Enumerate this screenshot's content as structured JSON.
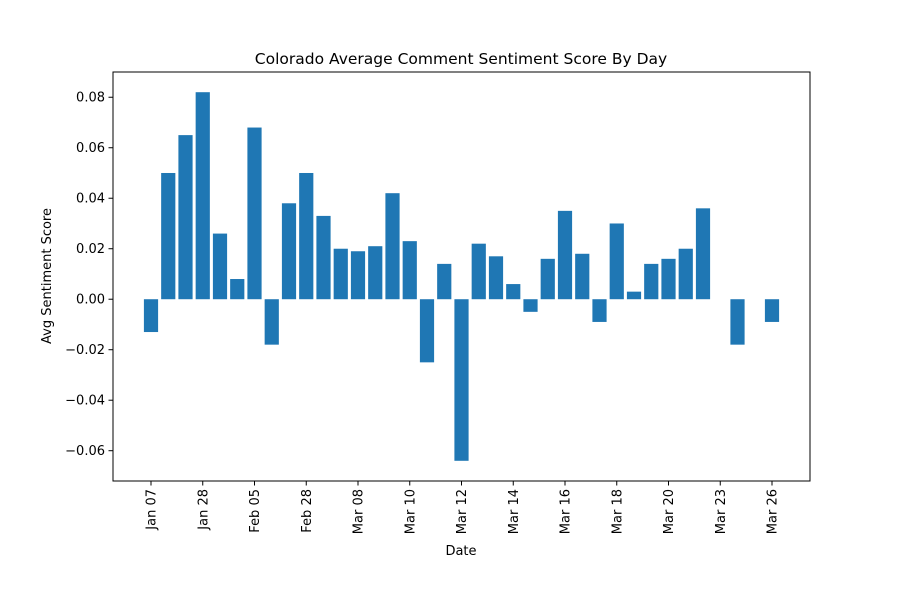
{
  "chart_data": {
    "type": "bar",
    "title": "Colorado Average Comment Sentiment Score By Day",
    "xlabel": "Date",
    "ylabel": "Avg Sentiment Score",
    "ylim": [
      -0.072,
      0.09
    ],
    "yticks": [
      -0.06,
      -0.04,
      -0.02,
      0.0,
      0.02,
      0.04,
      0.06,
      0.08
    ],
    "ytick_labels": [
      "−0.06",
      "−0.04",
      "−0.02",
      "0.00",
      "0.02",
      "0.04",
      "0.06",
      "0.08"
    ],
    "xtick_labels": [
      "Jan 07",
      "Jan 28",
      "Feb 05",
      "Feb 28",
      "Mar 08",
      "Mar 10",
      "Mar 12",
      "Mar 14",
      "Mar 16",
      "Mar 18",
      "Mar 20",
      "Mar 23",
      "Mar 26"
    ],
    "xtick_positions": [
      0,
      3,
      6,
      9,
      12,
      15,
      18,
      21,
      24,
      27,
      30,
      33,
      36
    ],
    "values": [
      -0.013,
      0.05,
      0.065,
      0.082,
      0.026,
      0.008,
      0.068,
      -0.018,
      0.038,
      0.05,
      0.033,
      0.02,
      0.019,
      0.021,
      0.042,
      0.023,
      -0.025,
      0.014,
      -0.064,
      0.022,
      0.017,
      0.006,
      -0.005,
      0.016,
      0.035,
      0.018,
      -0.009,
      0.03,
      0.003,
      0.014,
      0.016,
      0.02,
      0.036,
      null,
      -0.018,
      null,
      -0.009
    ],
    "bar_color": "#1f77b4",
    "grid": false,
    "legend": "none"
  }
}
